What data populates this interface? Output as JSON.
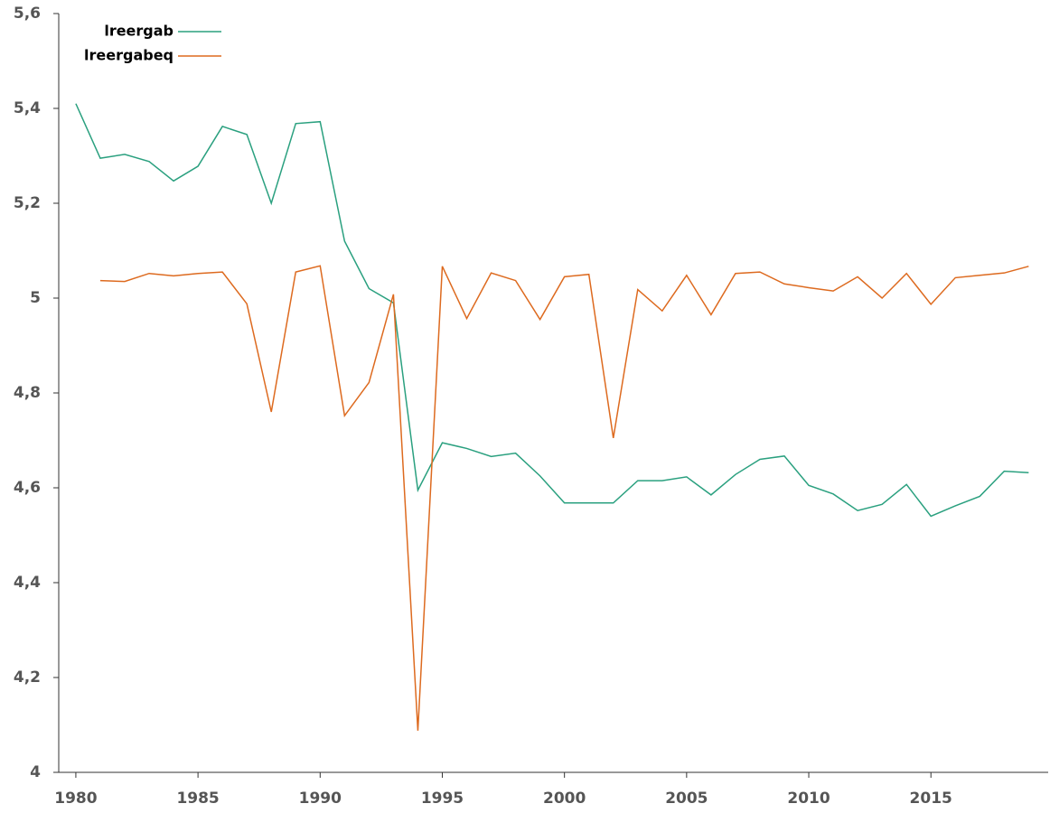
{
  "chart_data": {
    "type": "line",
    "x": [
      1980,
      1981,
      1982,
      1983,
      1984,
      1985,
      1986,
      1987,
      1988,
      1989,
      1990,
      1991,
      1992,
      1993,
      1994,
      1995,
      1996,
      1997,
      1998,
      1999,
      2000,
      2001,
      2002,
      2003,
      2004,
      2005,
      2006,
      2007,
      2008,
      2009,
      2010,
      2011,
      2012,
      2013,
      2014,
      2015,
      2016,
      2017,
      2018,
      2019
    ],
    "series": [
      {
        "name": "lreergab",
        "color": "#2aa07f",
        "values": [
          5.41,
          5.295,
          5.303,
          5.288,
          5.247,
          5.278,
          5.362,
          5.345,
          5.2,
          5.368,
          5.372,
          5.12,
          5.02,
          4.99,
          4.595,
          4.695,
          4.683,
          4.666,
          4.673,
          4.625,
          4.568,
          4.568,
          4.568,
          4.615,
          4.615,
          4.623,
          4.585,
          4.628,
          4.66,
          4.667,
          4.605,
          4.587,
          4.552,
          4.565,
          4.607,
          4.54,
          4.562,
          4.582,
          4.635,
          4.632
        ]
      },
      {
        "name": "lreergabeq",
        "color": "#dd6a1f",
        "values": [
          null,
          5.037,
          5.035,
          5.052,
          5.047,
          5.052,
          5.055,
          4.988,
          4.76,
          5.055,
          5.068,
          4.752,
          4.822,
          5.008,
          4.088,
          5.067,
          4.957,
          5.053,
          5.037,
          4.955,
          5.045,
          5.05,
          4.705,
          5.018,
          4.973,
          5.048,
          4.965,
          5.052,
          5.055,
          5.03,
          5.022,
          5.015,
          5.045,
          5.0,
          5.052,
          4.987,
          5.043,
          5.048,
          5.053,
          5.067
        ]
      }
    ],
    "xlim": [
      1979.3,
      2019.8
    ],
    "ylim": [
      4,
      5.6
    ],
    "xticks": [
      1980,
      1985,
      1990,
      1995,
      2000,
      2005,
      2010,
      2015
    ],
    "yticks": [
      4,
      {
        "value": 4.2,
        "label": "4,2"
      },
      {
        "value": 4.4,
        "label": "4,4"
      },
      {
        "value": 4.6,
        "label": "4,6"
      },
      {
        "value": 4.8,
        "label": "4,8"
      },
      5,
      {
        "value": 5.2,
        "label": "5,2"
      },
      {
        "value": 5.4,
        "label": "5,4"
      },
      {
        "value": 5.6,
        "label": "5,6"
      }
    ],
    "legend": "top-left"
  }
}
